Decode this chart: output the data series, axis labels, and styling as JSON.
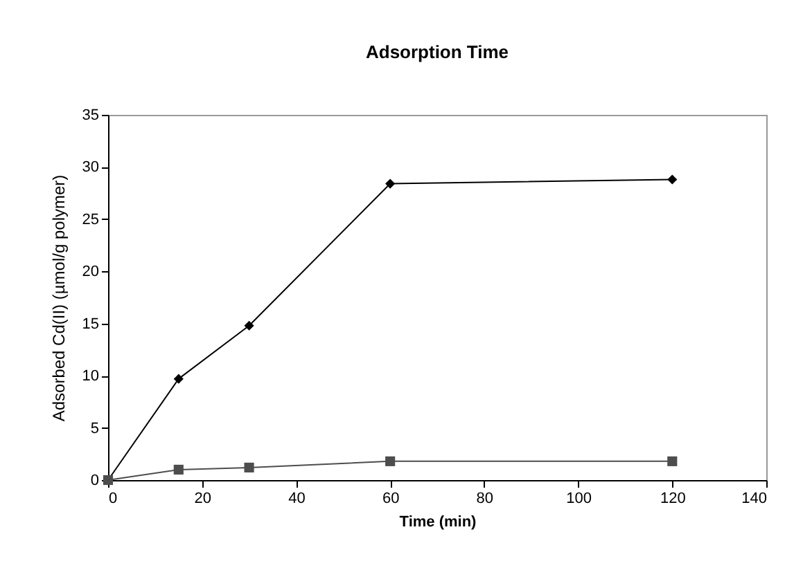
{
  "chart_data": {
    "type": "line",
    "title": "Adsorption Time",
    "xlabel": "Time (min)",
    "ylabel": "Adsorbed Cd(II) (µmol/g polymer)",
    "x": [
      0,
      15,
      30,
      60,
      120
    ],
    "series": [
      {
        "color": "#000000",
        "marker": "diamond",
        "values": [
          0,
          9.7,
          14.8,
          28.4,
          28.8
        ]
      },
      {
        "color": "#4d4d4d",
        "marker": "square",
        "values": [
          0,
          1.0,
          1.2,
          1.8,
          1.8
        ]
      }
    ],
    "xlim": [
      0,
      140
    ],
    "xticks": [
      0,
      20,
      40,
      60,
      80,
      100,
      120,
      140
    ],
    "ylim": [
      0,
      35
    ],
    "yticks": [
      0,
      5,
      10,
      15,
      20,
      25,
      30,
      35
    ],
    "grid": false,
    "line_style": "solid"
  }
}
